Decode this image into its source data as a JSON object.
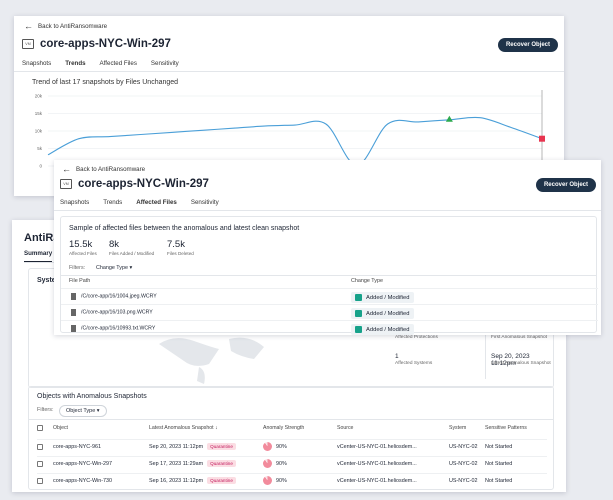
{
  "back_label": "Back to AntiRansomware",
  "vm_icon_label": "VM",
  "recover_label": "Recover Object",
  "panel1": {
    "title": "core-apps-NYC-Win-297",
    "tabs": [
      "Snapshots",
      "Trends",
      "Affected Files",
      "Sensitivity"
    ],
    "active_tab": "Trends"
  },
  "panel2": {
    "title": "core-apps-NYC-Win-297",
    "tabs": [
      "Snapshots",
      "Trends",
      "Affected Files",
      "Sensitivity"
    ],
    "active_tab": "Affected Files"
  },
  "chart_data": {
    "type": "line",
    "title": "Trend of last 17 snapshots by Files Unchanged",
    "yticks": [
      "20k",
      "15k",
      "10k",
      "5k",
      "0"
    ],
    "ylim": [
      0,
      20000
    ],
    "x": [
      0,
      1,
      2,
      3,
      4,
      5,
      6,
      7,
      8,
      9,
      10,
      11,
      12,
      13,
      14,
      15,
      16
    ],
    "values": [
      3200,
      7800,
      8400,
      9000,
      9600,
      10200,
      10800,
      11400,
      11700,
      12000,
      200,
      12000,
      12600,
      13200,
      13800,
      11000,
      7800
    ],
    "markers": [
      {
        "index": 13,
        "shape": "triangle",
        "color": "#2eaa4f"
      },
      {
        "index": 16,
        "shape": "square",
        "color": "#e8344f"
      }
    ],
    "line_color": "#4a9fd8"
  },
  "sample": {
    "heading": "Sample of affected files between the anomalous and latest clean snapshot",
    "stats": [
      {
        "value": "15.5k",
        "label": "Affected Files"
      },
      {
        "value": "8k",
        "label": "Files Added / Modified"
      },
      {
        "value": "7.5k",
        "label": "Files Deleted"
      }
    ],
    "filters_label": "Filters:",
    "filter_chip": "Change Type",
    "col_path": "File Path",
    "col_change": "Change Type",
    "rows": [
      {
        "path": "/C/core-app/16/1004.jpeg.WCRY",
        "change": "Added / Modified"
      },
      {
        "path": "/C/core-app/16/103.png.WCRY",
        "change": "Added / Modified"
      },
      {
        "path": "/C/core-app/16/10993.txt.WCRY",
        "change": "Added / Modified"
      }
    ]
  },
  "background": {
    "page_title": "AntiRan",
    "summary_tab": "Summary",
    "system_label": "System",
    "affected_protections_label": "Affected Protections",
    "first_anomalous_label": "First Anomalous Snapshot",
    "affected_systems_value": "1",
    "affected_systems_label": "Affected Systems",
    "latest_date": "Sep 20, 2023 11:12pm",
    "latest_label": "Latest Anomalous Snapshot"
  },
  "objects": {
    "heading": "Objects with Anomalous Snapshots",
    "filters_label": "Filters:",
    "filter_chip": "Object Type",
    "columns": [
      "Object",
      "Latest Anomalous Snapshot",
      "Anomaly Strength",
      "Source",
      "System",
      "Sensitive Patterns"
    ],
    "rows": [
      {
        "object": "core-apps-NYC-961",
        "date": "Sep 20, 2023 11:12pm",
        "badge": "Quarantine",
        "strength": "90%",
        "source": "vCenter-US-NYC-01.heliosdem...",
        "system": "US-NYC-02",
        "patterns": "Not Started"
      },
      {
        "object": "core-apps-NYC-Win-297",
        "date": "Sep 17, 2023 11:29am",
        "badge": "Quarantine",
        "strength": "90%",
        "source": "vCenter-US-NYC-01.heliosdem...",
        "system": "US-NYC-02",
        "patterns": "Not Started"
      },
      {
        "object": "core-apps-NYC-Win-730",
        "date": "Sep 16, 2023 11:12pm",
        "badge": "Quarantine",
        "strength": "90%",
        "source": "vCenter-US-NYC-01.heliosdem...",
        "system": "US-NYC-02",
        "patterns": "Not Started"
      }
    ]
  }
}
